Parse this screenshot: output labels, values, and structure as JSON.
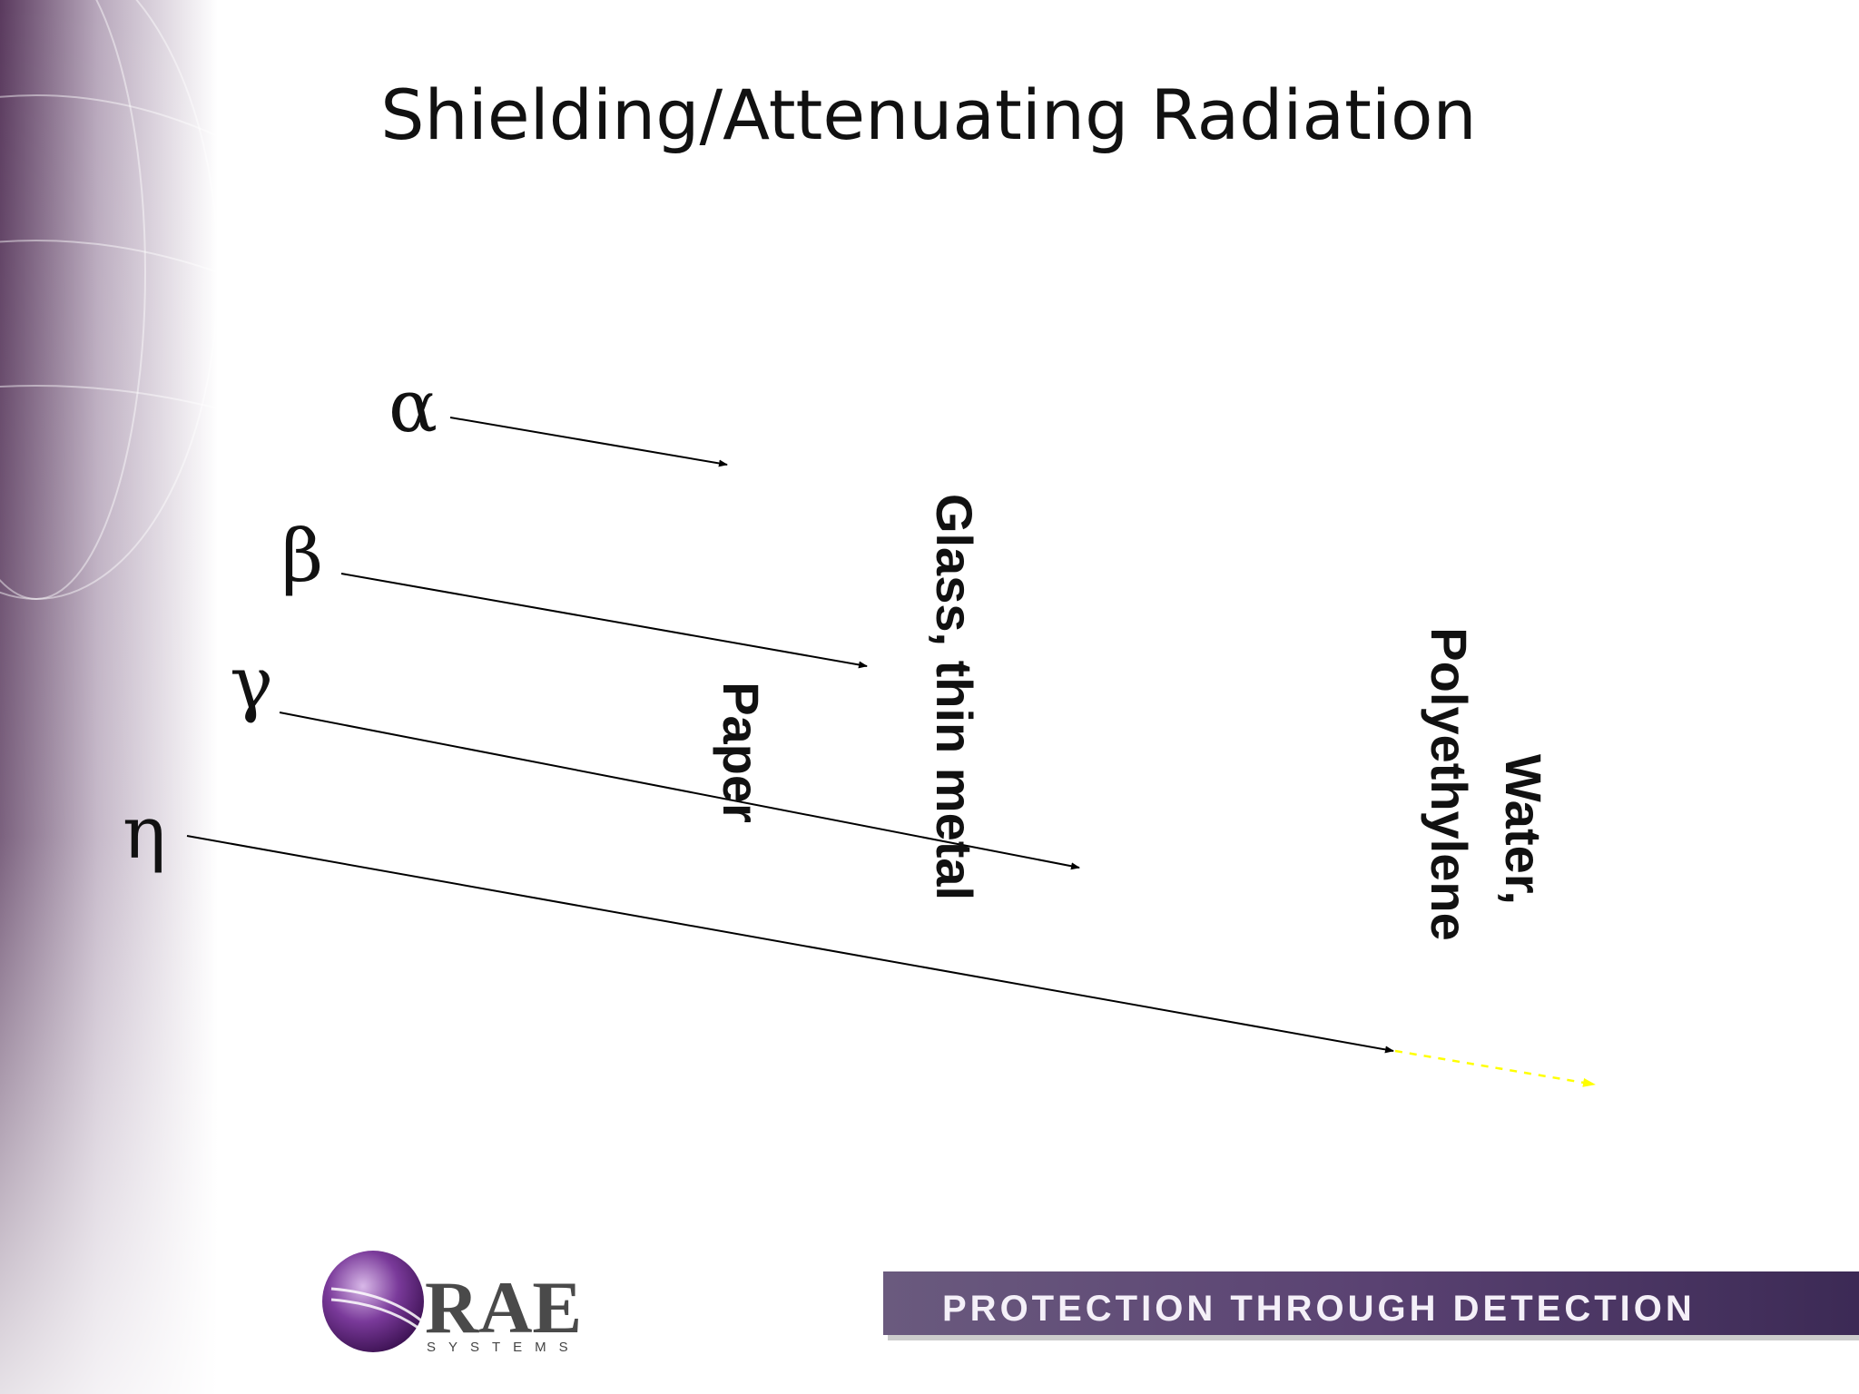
{
  "title": "Shielding/Attenuating Radiation",
  "particles": [
    {
      "symbol": "α"
    },
    {
      "symbol": "β"
    },
    {
      "symbol": "γ"
    },
    {
      "symbol": "η"
    }
  ],
  "shields": [
    {
      "lines": [
        "Paper"
      ]
    },
    {
      "lines": [
        "Glass, thin metal"
      ]
    },
    {
      "lines": [
        "Water,",
        "Polyethylene"
      ]
    }
  ],
  "logo": {
    "name": "RAE",
    "subtitle": "SYSTEMS"
  },
  "tagline": "PROTECTION THROUGH DETECTION"
}
